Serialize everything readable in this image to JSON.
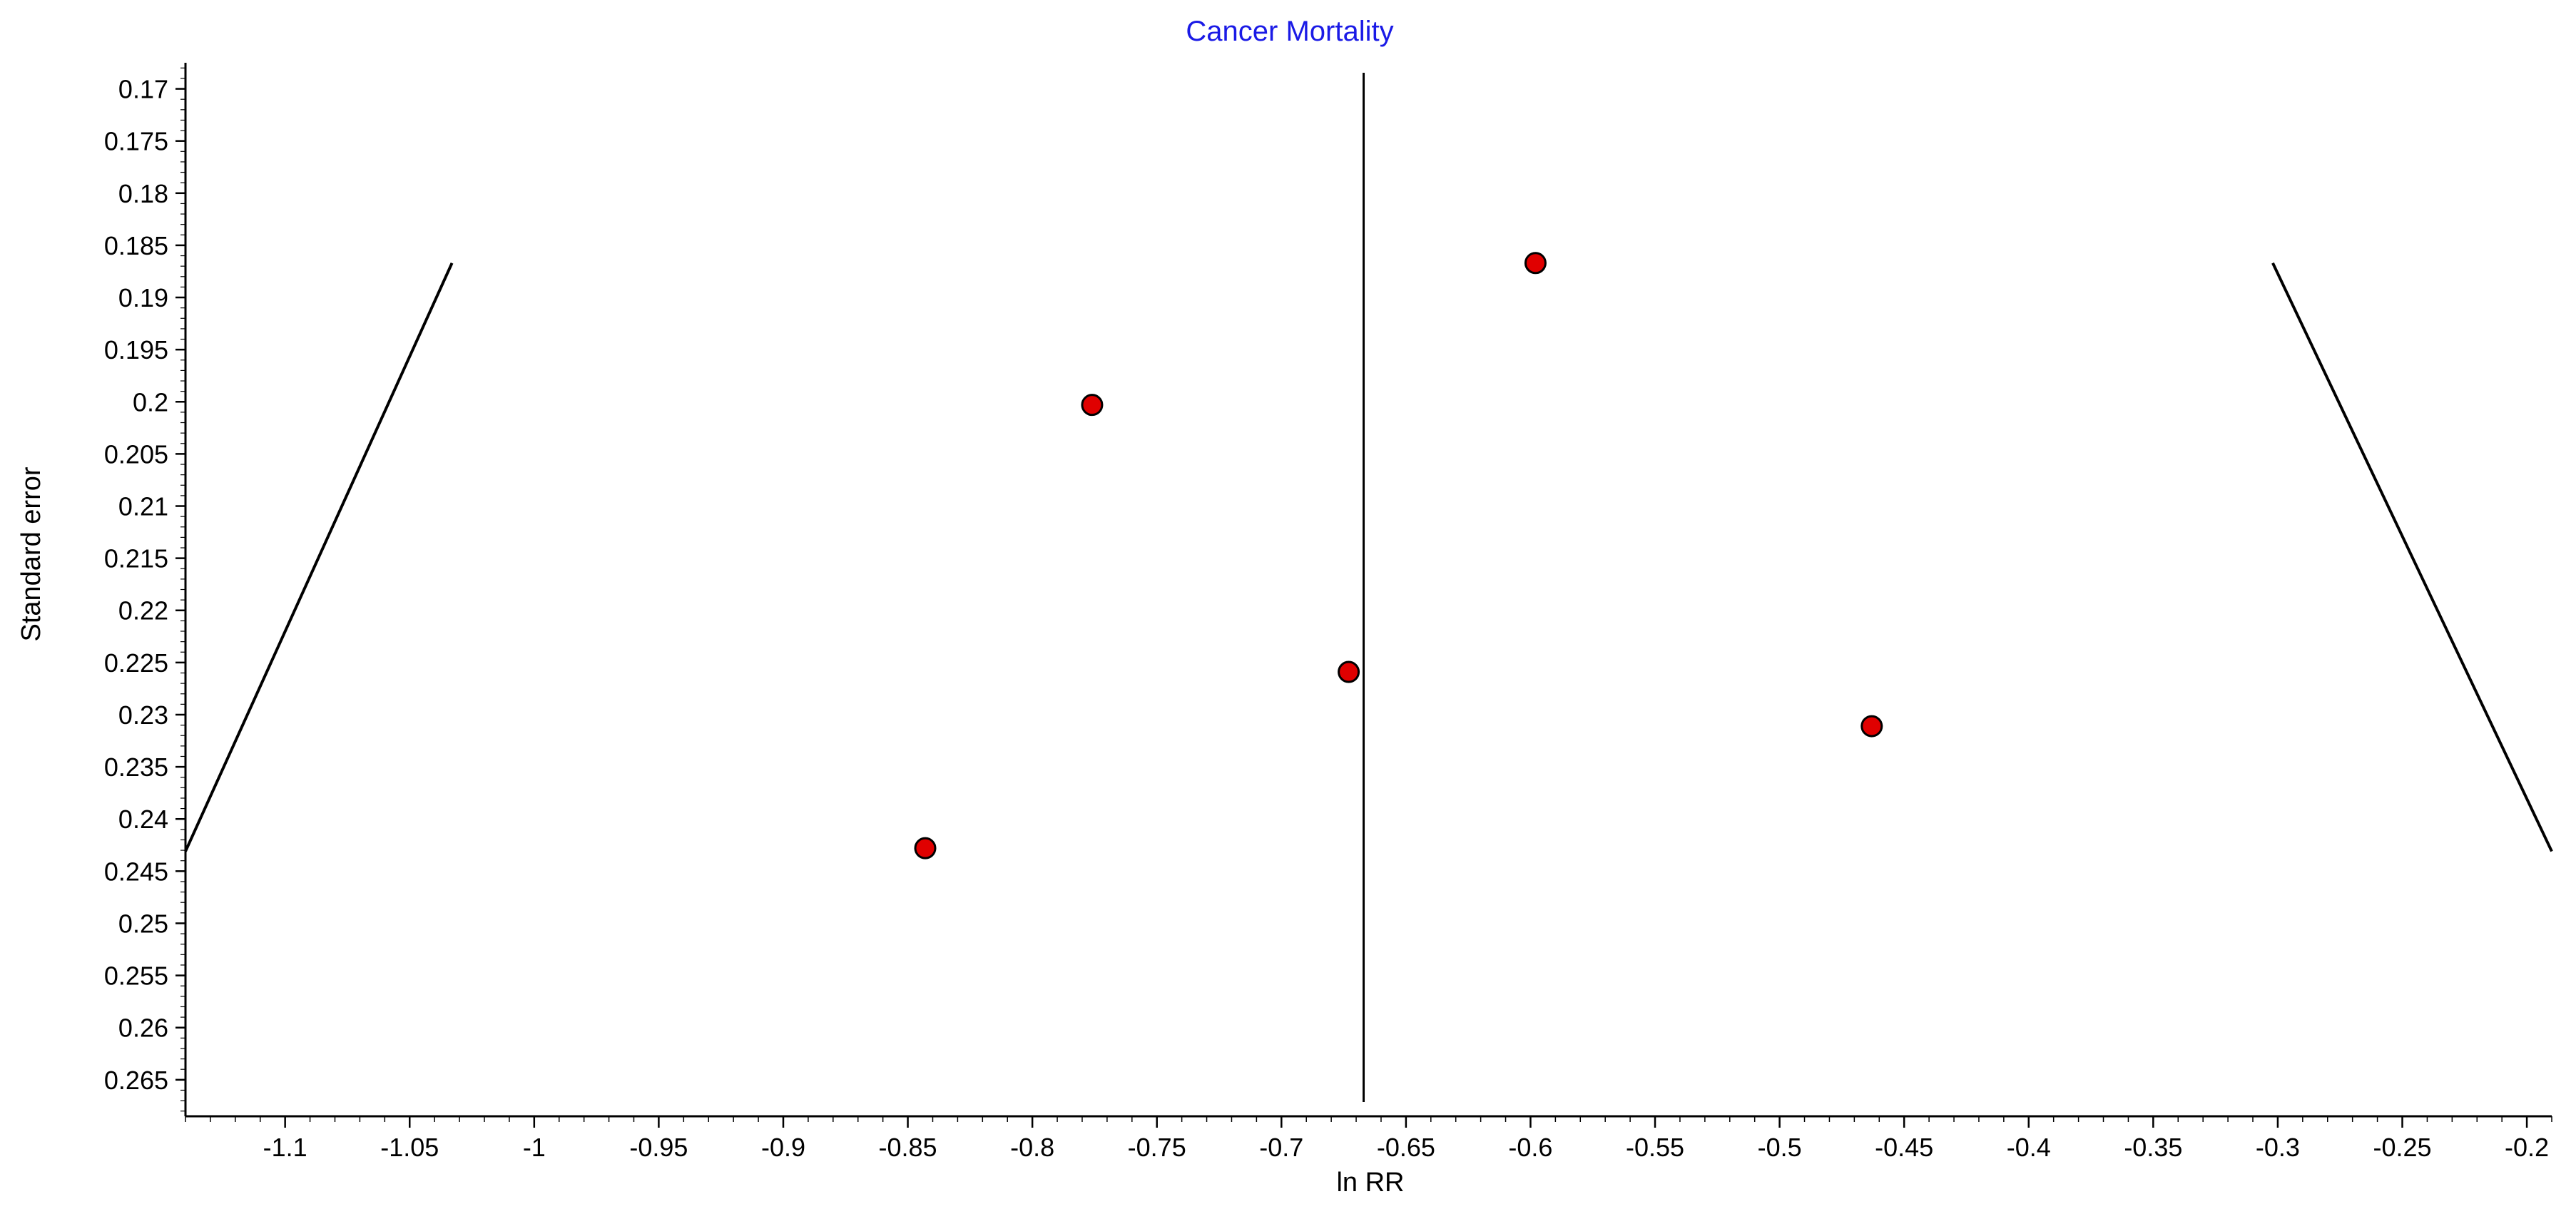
{
  "chart_data": {
    "type": "scatter",
    "title": "Cancer Mortality",
    "xlabel": "ln RR",
    "ylabel": "Standard error",
    "xlim": [
      -1.14,
      -0.19
    ],
    "ylim": [
      0.1675,
      0.2685
    ],
    "y_inverted": true,
    "xticks": [
      -1.1,
      -1.05,
      -1,
      -0.95,
      -0.9,
      -0.85,
      -0.8,
      -0.75,
      -0.7,
      -0.65,
      -0.6,
      -0.55,
      -0.5,
      -0.45,
      -0.4,
      -0.35,
      -0.3,
      -0.25,
      -0.2
    ],
    "xtick_labels": [
      "-1.1",
      "-1.05",
      "-1",
      "-0.95",
      "-0.9",
      "-0.85",
      "-0.8",
      "-0.75",
      "-0.7",
      "-0.65",
      "-0.6",
      "-0.55",
      "-0.5",
      "-0.45",
      "-0.4",
      "-0.35",
      "-0.3",
      "-0.25",
      "-0.2"
    ],
    "yticks": [
      0.17,
      0.175,
      0.18,
      0.185,
      0.19,
      0.195,
      0.2,
      0.205,
      0.21,
      0.215,
      0.22,
      0.225,
      0.23,
      0.235,
      0.24,
      0.245,
      0.25,
      0.255,
      0.26,
      0.265
    ],
    "ytick_labels": [
      "0.17",
      "0.175",
      "0.18",
      "0.185",
      "0.19",
      "0.195",
      "0.2",
      "0.205",
      "0.21",
      "0.215",
      "0.22",
      "0.225",
      "0.23",
      "0.235",
      "0.24",
      "0.245",
      "0.25",
      "0.255",
      "0.26",
      "0.265"
    ],
    "points": [
      {
        "x": -0.598,
        "y": 0.1867
      },
      {
        "x": -0.776,
        "y": 0.2003
      },
      {
        "x": -0.673,
        "y": 0.2259
      },
      {
        "x": -0.463,
        "y": 0.2311
      },
      {
        "x": -0.843,
        "y": 0.2428
      }
    ],
    "pooled_effect": -0.667,
    "funnel_left": [
      {
        "x": -1.033,
        "y": 0.1867
      },
      {
        "x": -1.14,
        "y": 0.2431
      }
    ],
    "funnel_right": [
      {
        "x": -0.302,
        "y": 0.1867
      },
      {
        "x": -0.19,
        "y": 0.2431
      }
    ],
    "grid": false,
    "colors": {
      "title": "#1a1ae6",
      "point_fill": "#e00000",
      "point_stroke": "#000000",
      "line": "#000000"
    }
  }
}
